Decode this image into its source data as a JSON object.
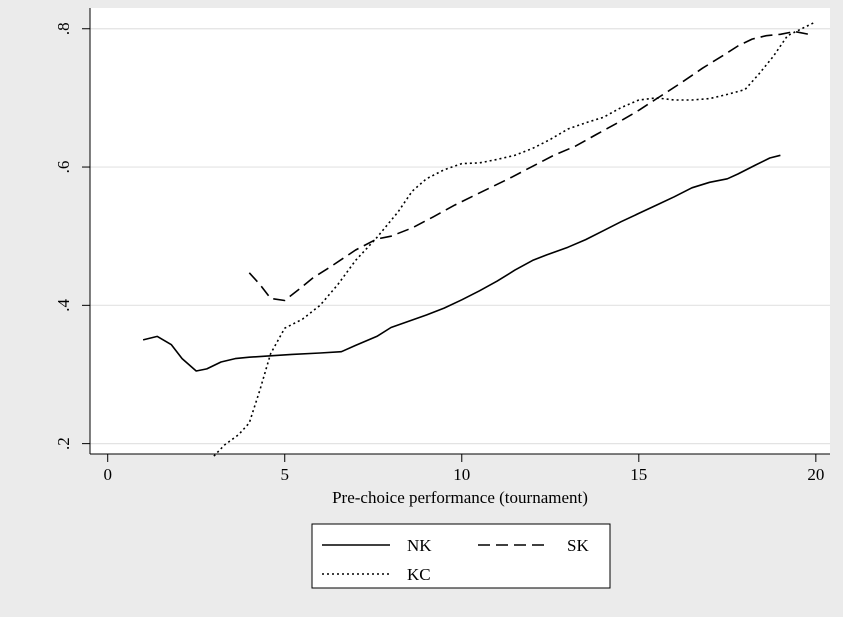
{
  "chart_data": {
    "type": "line",
    "title": "",
    "xlabel": "Pre-choice performance (tournament)",
    "ylabel": "",
    "xlim": [
      -0.5,
      20.4
    ],
    "ylim": [
      0.185,
      0.83
    ],
    "x_ticks": [
      0,
      5,
      10,
      15,
      20
    ],
    "x_tick_labels": [
      "0",
      "5",
      "10",
      "15",
      "20"
    ],
    "y_ticks": [
      0.2,
      0.4,
      0.6,
      0.8
    ],
    "y_tick_labels": [
      ".2",
      ".4",
      ".6",
      ".8"
    ],
    "grid": "horizontal",
    "legend_position": "bottom",
    "colors": {
      "background": "#ebebeb",
      "plot_bg": "#ffffff",
      "grid": "#e3e3e3",
      "line": "#000000"
    },
    "series": [
      {
        "name": "NK",
        "style": "solid",
        "x": [
          1.0,
          1.4,
          1.8,
          2.1,
          2.5,
          2.8,
          3.2,
          3.6,
          4.0,
          4.6,
          5.2,
          6.0,
          6.6,
          7.0,
          7.6,
          8.0,
          8.5,
          9.0,
          9.5,
          10.0,
          10.5,
          11.0,
          11.5,
          12.0,
          12.4,
          13.0,
          13.5,
          14.0,
          14.5,
          15.0,
          15.5,
          16.0,
          16.5,
          17.0,
          17.5,
          17.8,
          18.3,
          18.7,
          19.0
        ],
        "y": [
          0.35,
          0.355,
          0.343,
          0.323,
          0.305,
          0.308,
          0.318,
          0.323,
          0.325,
          0.327,
          0.329,
          0.331,
          0.333,
          0.342,
          0.355,
          0.368,
          0.377,
          0.386,
          0.396,
          0.408,
          0.421,
          0.435,
          0.451,
          0.465,
          0.473,
          0.484,
          0.495,
          0.508,
          0.521,
          0.533,
          0.545,
          0.557,
          0.57,
          0.578,
          0.583,
          0.59,
          0.603,
          0.613,
          0.617
        ]
      },
      {
        "name": "SK",
        "style": "dashed",
        "x": [
          4.0,
          4.3,
          4.6,
          5.0,
          5.4,
          5.8,
          6.3,
          7.0,
          7.6,
          8.0,
          8.6,
          9.2,
          9.8,
          10.4,
          10.8,
          11.4,
          12.0,
          12.6,
          13.2,
          13.8,
          14.4,
          15.0,
          15.6,
          16.2,
          16.8,
          17.4,
          17.8,
          18.2,
          18.6,
          19.0,
          19.4,
          19.8
        ],
        "y": [
          0.447,
          0.43,
          0.41,
          0.407,
          0.423,
          0.44,
          0.456,
          0.48,
          0.496,
          0.5,
          0.512,
          0.528,
          0.545,
          0.56,
          0.57,
          0.585,
          0.601,
          0.617,
          0.63,
          0.647,
          0.664,
          0.682,
          0.702,
          0.722,
          0.743,
          0.762,
          0.775,
          0.785,
          0.79,
          0.792,
          0.796,
          0.792
        ]
      },
      {
        "name": "KC",
        "style": "dotted",
        "x": [
          3.0,
          3.3,
          3.7,
          4.0,
          4.3,
          4.6,
          5.0,
          5.5,
          6.0,
          6.5,
          7.0,
          7.6,
          8.2,
          8.6,
          9.0,
          9.5,
          10.0,
          10.5,
          11.0,
          11.5,
          12.0,
          12.5,
          13.0,
          13.5,
          14.0,
          14.5,
          15.0,
          15.5,
          16.0,
          16.5,
          17.0,
          17.5,
          18.0,
          18.4,
          18.8,
          19.2,
          19.6,
          20.0
        ],
        "y": [
          0.182,
          0.198,
          0.213,
          0.23,
          0.278,
          0.33,
          0.367,
          0.38,
          0.4,
          0.43,
          0.465,
          0.498,
          0.535,
          0.565,
          0.583,
          0.596,
          0.605,
          0.606,
          0.611,
          0.617,
          0.627,
          0.64,
          0.655,
          0.664,
          0.672,
          0.686,
          0.697,
          0.7,
          0.697,
          0.697,
          0.699,
          0.705,
          0.712,
          0.735,
          0.76,
          0.79,
          0.8,
          0.81
        ]
      }
    ]
  }
}
